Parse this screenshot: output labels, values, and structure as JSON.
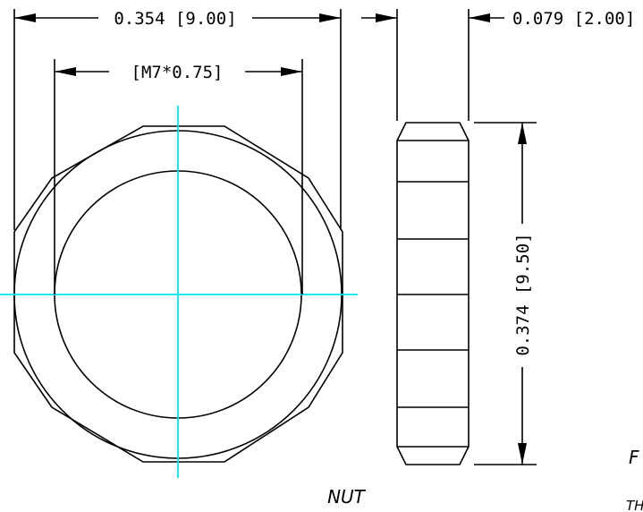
{
  "drawing": {
    "title": "NUT",
    "dimensions": {
      "across_flats": "0.354  [9.00]",
      "thread": "[M7*0.75]",
      "thickness": "0.079  [2.00]",
      "height": "0.374  [9.50]"
    },
    "partial_labels": {
      "right_edge_1": "F",
      "right_edge_2": "TH"
    },
    "colors": {
      "geometry": "#000000",
      "centerline": "#00e5f0",
      "background": "#ffffff"
    }
  }
}
